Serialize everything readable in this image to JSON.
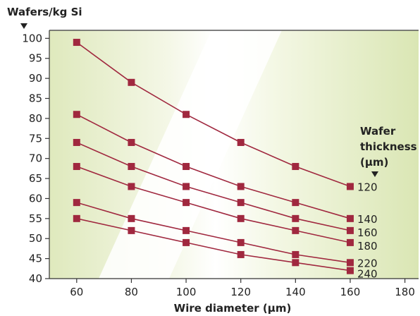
{
  "chart_data": {
    "type": "line",
    "ylabel": "Wafers/kg Si",
    "xlabel": "Wire diameter (µm)",
    "legend_title": [
      "Wafer",
      "thickness",
      "(µm)"
    ],
    "x": [
      60,
      80,
      100,
      120,
      140,
      160
    ],
    "xlim": [
      50,
      185
    ],
    "ylim": [
      40,
      102
    ],
    "xticks": [
      60,
      80,
      100,
      120,
      140,
      160,
      180
    ],
    "yticks": [
      40,
      45,
      50,
      55,
      60,
      65,
      70,
      75,
      80,
      85,
      90,
      95,
      100
    ],
    "series_color": "#a0283f",
    "background_colors": {
      "light": "#e4edc4",
      "white": "#ffffff"
    },
    "grid": false,
    "series": [
      {
        "name": "120",
        "values": [
          99,
          89,
          81,
          74,
          68,
          63
        ]
      },
      {
        "name": "140",
        "values": [
          81,
          74,
          68,
          63,
          59,
          55
        ]
      },
      {
        "name": "160",
        "values": [
          74,
          68,
          63,
          59,
          55,
          52
        ]
      },
      {
        "name": "180",
        "values": [
          68,
          63,
          59,
          55,
          52,
          49
        ]
      },
      {
        "name": "220",
        "values": [
          59,
          55,
          52,
          49,
          46,
          44
        ]
      },
      {
        "name": "240",
        "values": [
          55,
          52,
          49,
          46,
          44,
          42
        ]
      }
    ]
  }
}
